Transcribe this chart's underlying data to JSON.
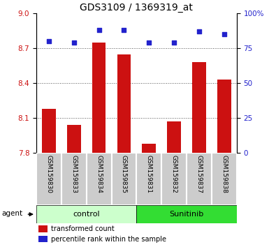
{
  "title": "GDS3109 / 1369319_at",
  "categories": [
    "GSM159830",
    "GSM159833",
    "GSM159834",
    "GSM159835",
    "GSM159831",
    "GSM159832",
    "GSM159837",
    "GSM159838"
  ],
  "bar_values": [
    8.18,
    8.04,
    8.75,
    8.65,
    7.88,
    8.07,
    8.58,
    8.43
  ],
  "percentile_values": [
    80,
    79,
    88,
    88,
    79,
    79,
    87,
    85
  ],
  "ylim": [
    7.8,
    9.0
  ],
  "yticks": [
    7.8,
    8.1,
    8.4,
    8.7,
    9.0
  ],
  "right_yticks": [
    0,
    25,
    50,
    75,
    100
  ],
  "right_ylim": [
    0,
    100
  ],
  "bar_color": "#cc1111",
  "dot_color": "#2222cc",
  "control_label": "control",
  "sunitinib_label": "Sunitinib",
  "agent_label": "agent",
  "legend_bar": "transformed count",
  "legend_dot": "percentile rank within the sample",
  "control_bg": "#ccffcc",
  "sunitinib_bg": "#33dd33",
  "box_bg": "#cccccc",
  "box_edge": "#ffffff",
  "dotted_line_color": "#555555",
  "title_fontsize": 10,
  "tick_fontsize": 7.5,
  "cat_fontsize": 6.5,
  "legend_fontsize": 7,
  "group_fontsize": 8
}
